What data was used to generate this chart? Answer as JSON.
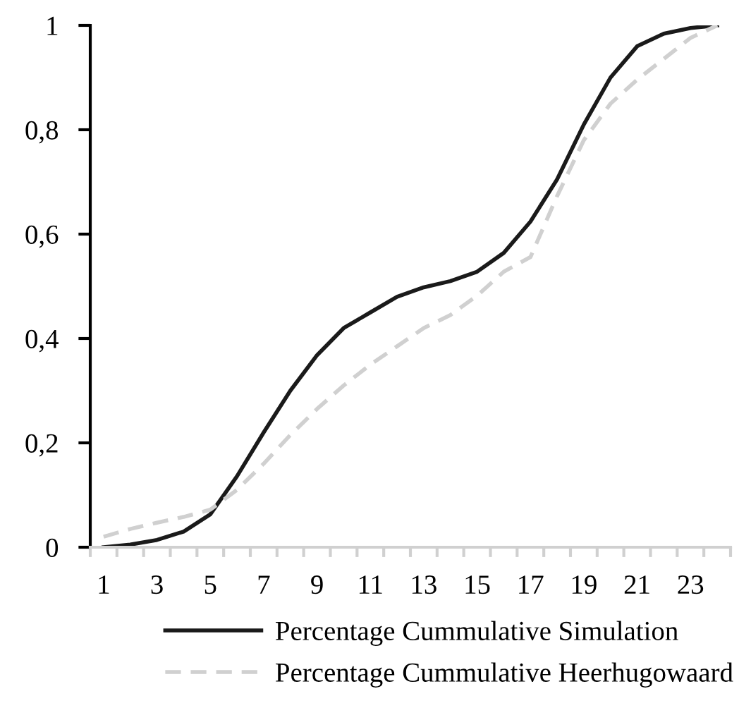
{
  "chart_data": {
    "type": "line",
    "categories": [
      "1",
      null,
      "3",
      null,
      "5",
      null,
      "7",
      null,
      "9",
      null,
      "11",
      null,
      "13",
      null,
      "15",
      null,
      "17",
      null,
      "19",
      null,
      "21",
      null,
      "23",
      null
    ],
    "series": [
      {
        "name": "Percentage Cummulative Simulation",
        "color": "#1a1a1a",
        "line_style": "solid",
        "values": [
          0,
          0.005,
          0.014,
          0.03,
          0.063,
          0.136,
          0.22,
          0.3,
          0.368,
          0.42,
          0.45,
          0.48,
          0.498,
          0.51,
          0.528,
          0.564,
          0.624,
          0.705,
          0.81,
          0.9,
          0.96,
          0.984,
          0.995,
          1
        ]
      },
      {
        "name": "Percentage Cummulative Heerhugowaard",
        "color": "#d0d0d0",
        "line_style": "dashed",
        "values": [
          0.02,
          0.035,
          0.047,
          0.058,
          0.072,
          0.11,
          0.16,
          0.215,
          0.265,
          0.31,
          0.35,
          0.385,
          0.42,
          0.445,
          0.482,
          0.528,
          0.556,
          0.673,
          0.78,
          0.85,
          0.896,
          0.936,
          0.976,
          1
        ]
      }
    ],
    "ylim": [
      0,
      1
    ],
    "yticks": [
      0,
      {
        "value": 0.2,
        "label": "0,2"
      },
      {
        "value": 0.4,
        "label": "0,4"
      },
      {
        "value": 0.6,
        "label": "0,6"
      },
      {
        "value": 0.8,
        "label": "0,8"
      },
      1
    ],
    "legend": "bottom",
    "marker": "none"
  }
}
